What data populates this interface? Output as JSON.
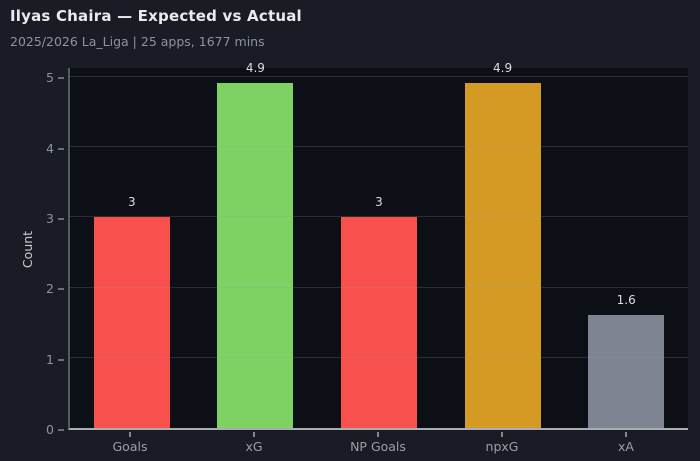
{
  "chart_data": {
    "type": "bar",
    "title": "Ilyas Chaira — Expected vs Actual",
    "subtitle": "2025/2026 La_Liga | 25 apps, 1677 mins",
    "categories": [
      "Goals",
      "xG",
      "NP Goals",
      "npxG",
      "xA"
    ],
    "values": [
      3,
      4.9,
      3,
      4.9,
      1.6
    ],
    "value_labels": [
      "3",
      "4.9",
      "3",
      "4.9",
      "1.6"
    ],
    "series": [
      {
        "name": "Count",
        "values": [
          3,
          4.9,
          3,
          4.9,
          1.6
        ]
      }
    ],
    "bar_colors": [
      "#f8514d",
      "#7ed263",
      "#f8514d",
      "#d49a23",
      "#7e8491"
    ],
    "xlabel": "",
    "ylabel": "Count",
    "yticks": [
      0,
      1,
      2,
      3,
      4,
      5
    ],
    "ylim": [
      0,
      5.145
    ],
    "grid": {
      "horizontal": true,
      "vertical": false,
      "drawn_over_bars": true
    },
    "legend": "none",
    "colors": {
      "figure_background": "#191c24",
      "plot_background": "#0d0f16",
      "title_text": "#e9ebee",
      "subtitle_text": "#8f929a",
      "tick_label_text": "#8f939a",
      "value_label_text": "#dcdee2",
      "axis_label_text": "#c9cbd0",
      "bottom_spine": "#a9acb2",
      "left_spine": "#565a63",
      "gridline": "rgba(148,153,163,0.22)"
    }
  }
}
